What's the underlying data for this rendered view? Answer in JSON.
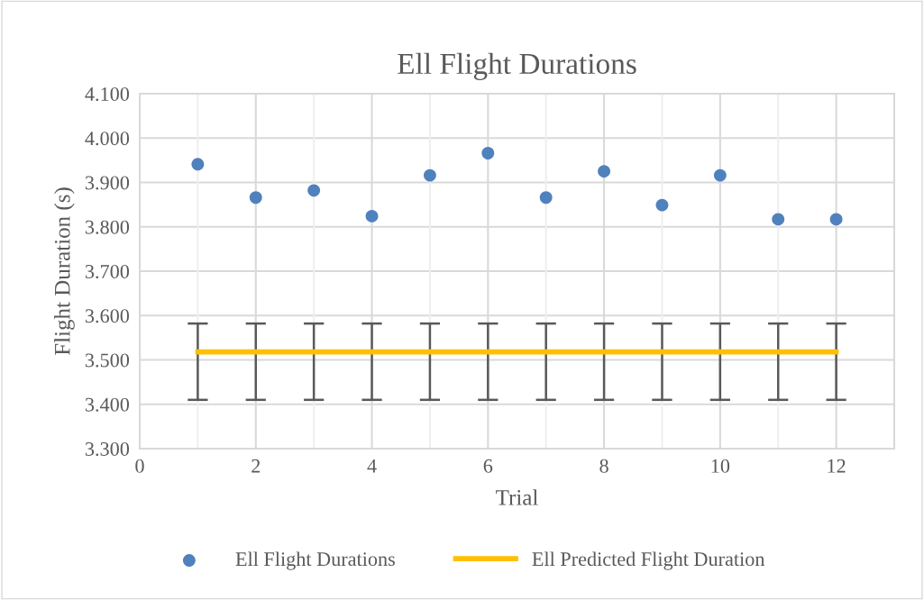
{
  "chart_data": {
    "type": "scatter",
    "title": "Ell Flight Durations",
    "xlabel": "Trial",
    "ylabel": "Flight Duration (s)",
    "series": [
      {
        "name": "Ell Flight Durations",
        "marker": "circle",
        "color": "#4f81bd",
        "x": [
          1,
          2,
          3,
          4,
          5,
          6,
          7,
          8,
          9,
          10,
          11,
          12
        ],
        "values": [
          3.941,
          3.866,
          3.882,
          3.824,
          3.916,
          3.966,
          3.866,
          3.925,
          3.849,
          3.916,
          3.817,
          3.817
        ]
      },
      {
        "name": "Ell Predicted Flight Duration",
        "type": "line",
        "color": "#ffc000",
        "x": [
          1,
          2,
          3,
          4,
          5,
          6,
          7,
          8,
          9,
          10,
          11,
          12
        ],
        "values": [
          3.518,
          3.518,
          3.518,
          3.518,
          3.518,
          3.518,
          3.518,
          3.518,
          3.518,
          3.518,
          3.518,
          3.518
        ],
        "errors": [
          [
            3.41,
            3.582
          ],
          [
            3.41,
            3.582
          ],
          [
            3.41,
            3.582
          ],
          [
            3.41,
            3.582
          ],
          [
            3.41,
            3.582
          ],
          [
            3.41,
            3.582
          ],
          [
            3.41,
            3.582
          ],
          [
            3.41,
            3.582
          ],
          [
            3.41,
            3.582
          ],
          [
            3.41,
            3.582
          ],
          [
            3.41,
            3.582
          ],
          [
            3.41,
            3.582
          ]
        ]
      }
    ],
    "xlim": [
      0,
      13
    ],
    "xticks": [
      0,
      {
        "value": 1,
        "label": null
      },
      2,
      {
        "value": 3,
        "label": null
      },
      4,
      {
        "value": 5,
        "label": null
      },
      6,
      {
        "value": 7,
        "label": null
      },
      8,
      {
        "value": 9,
        "label": null
      },
      10,
      {
        "value": 11,
        "label": null
      },
      12
    ],
    "ylim": [
      3.3,
      4.1
    ],
    "yticks": [
      {
        "value": 3.3,
        "label": "3.300"
      },
      {
        "value": 3.4,
        "label": "3.400"
      },
      {
        "value": 3.5,
        "label": "3.500"
      },
      {
        "value": 3.6,
        "label": "3.600"
      },
      {
        "value": 3.7,
        "label": "3.700"
      },
      {
        "value": 3.8,
        "label": "3.800"
      },
      {
        "value": 3.9,
        "label": "3.900"
      },
      {
        "value": 4.0,
        "label": "4.000"
      },
      {
        "value": 4.1,
        "label": "4.100"
      }
    ],
    "grid": true,
    "legend": "bottom"
  }
}
